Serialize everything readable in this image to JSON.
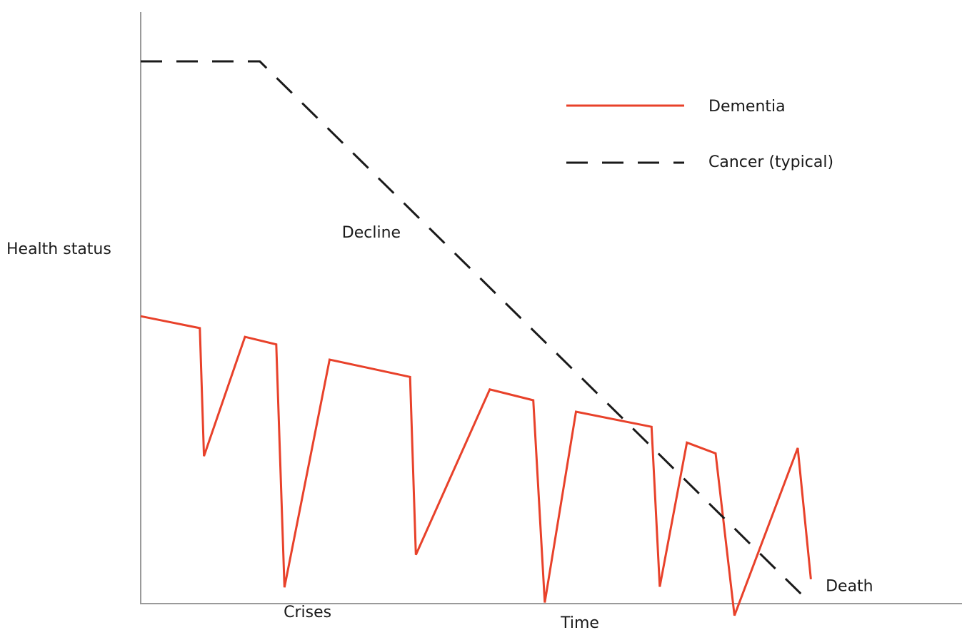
{
  "chart_data": {
    "type": "line",
    "xlabel": "Time",
    "ylabel": "Health status",
    "xlim": [
      0,
      100
    ],
    "ylim": [
      0,
      100
    ],
    "series": [
      {
        "name": "Dementia",
        "color": "#e8412a",
        "style": "solid",
        "x": [
          0,
          7.2,
          7.7,
          12.7,
          16.5,
          17.5,
          23.0,
          32.8,
          33.5,
          42.5,
          47.8,
          49.2,
          53.0,
          62.2,
          63.2,
          66.5,
          70.0,
          72.3,
          80.0,
          81.6
        ],
        "y": [
          53,
          50.8,
          27.2,
          49.2,
          47.8,
          3.0,
          45.0,
          41.8,
          9.0,
          39.5,
          37.5,
          0.2,
          35.4,
          32.6,
          3.1,
          29.7,
          27.7,
          -2.2,
          28.7,
          4.5
        ]
      },
      {
        "name": "Cancer (typical)",
        "color": "#1a1a1a",
        "style": "dashed",
        "x": [
          0,
          14.5,
          81.6
        ],
        "y": [
          100,
          100,
          0
        ]
      }
    ],
    "annotations": [
      {
        "text": "Decline",
        "x": 24.5,
        "y": 67.5
      },
      {
        "text": "Crises",
        "x": 17.4,
        "y": -2.5
      },
      {
        "text": "Death",
        "x": 83.4,
        "y": 2.3
      }
    ],
    "legend": "top-right",
    "grid": false
  }
}
